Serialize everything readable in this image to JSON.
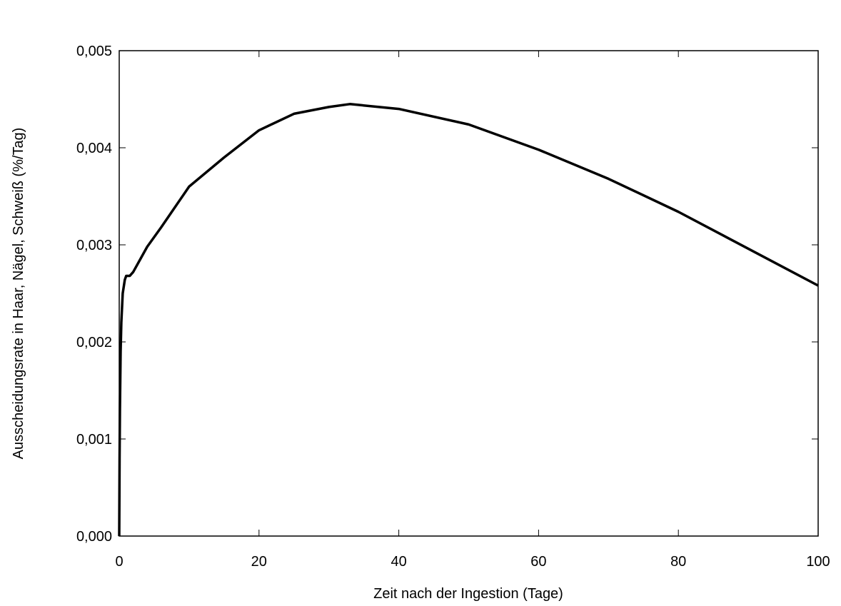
{
  "chart_data": {
    "type": "line",
    "xlabel": "Zeit nach der Ingestion (Tage)",
    "ylabel": "Ausscheidungsrate in Haar, Nägel, Schweiß (%/Tag)",
    "x": [
      0,
      0.05,
      0.1,
      0.2,
      0.3,
      0.5,
      0.8,
      1,
      1.5,
      2,
      4,
      6,
      10,
      15,
      20,
      25,
      30,
      33,
      40,
      50,
      60,
      70,
      80,
      90,
      100
    ],
    "series": [
      {
        "color": "#000000",
        "values": [
          0,
          0.0008,
          0.0013,
          0.0019,
          0.0022,
          0.0025,
          0.00264,
          0.00268,
          0.00268,
          0.00272,
          0.00298,
          0.00318,
          0.0036,
          0.0039,
          0.00418,
          0.00435,
          0.00442,
          0.00445,
          0.0044,
          0.00424,
          0.00398,
          0.00368,
          0.00334,
          0.00296,
          0.00258
        ]
      }
    ],
    "xlim": [
      0,
      100
    ],
    "xticks": [
      0,
      20,
      40,
      60,
      80,
      100
    ],
    "ylim": [
      0,
      0.005
    ],
    "yticks": [
      {
        "value": 0,
        "label": "0,000"
      },
      {
        "value": 0.001,
        "label": "0,001"
      },
      {
        "value": 0.002,
        "label": "0,002"
      },
      {
        "value": 0.003,
        "label": "0,003"
      },
      {
        "value": 0.004,
        "label": "0,004"
      },
      {
        "value": 0.005,
        "label": "0,005"
      }
    ]
  }
}
